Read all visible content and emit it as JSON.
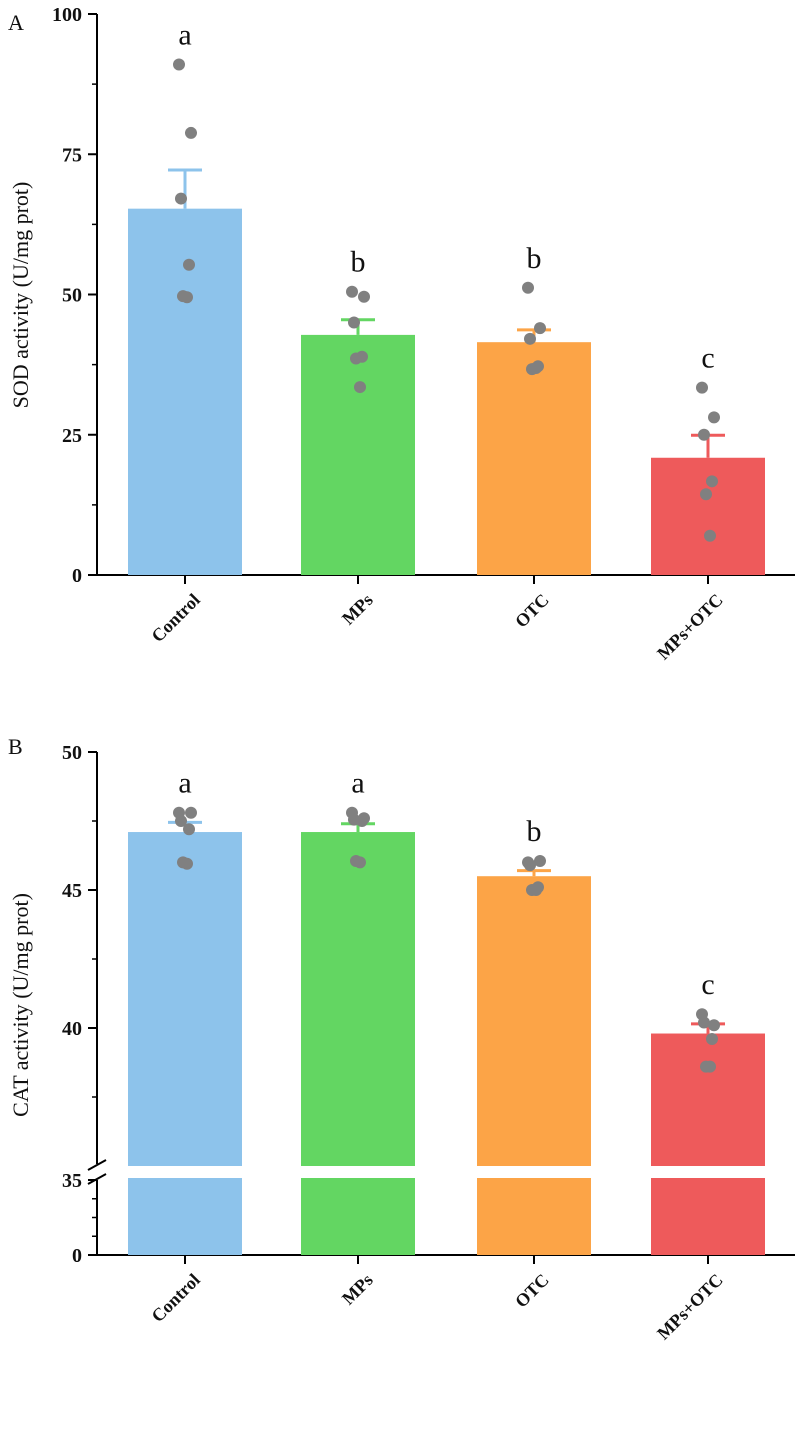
{
  "chart_data": [
    {
      "panel": "A",
      "type": "bar",
      "ylabel": "SOD activity (U/mg prot)",
      "ylim": [
        0,
        100
      ],
      "yticks": [
        "0",
        "25",
        "50",
        "75",
        "100"
      ],
      "categories": [
        "Control",
        "MPs",
        "OTC",
        "MPs+OTC"
      ],
      "colors": [
        "#8DC3EB",
        "#63D662",
        "#FCA447",
        "#EE5A5B"
      ],
      "values": [
        65.3,
        42.8,
        41.5,
        20.9
      ],
      "errors": [
        6.9,
        2.7,
        2.2,
        4.0
      ],
      "letters": [
        "a",
        "b",
        "b",
        "c"
      ],
      "points": [
        [
          91.0,
          78.8,
          67.1,
          55.3,
          49.7,
          49.5
        ],
        [
          50.5,
          49.6,
          45.0,
          38.9,
          38.6,
          33.5
        ],
        [
          51.2,
          44.0,
          42.1,
          37.2,
          36.7,
          36.9
        ],
        [
          33.4,
          28.1,
          25.0,
          16.7,
          14.4,
          7.0
        ]
      ]
    },
    {
      "panel": "B",
      "type": "bar",
      "ylabel": "CAT activity (U/mg prot)",
      "ylim_upper": [
        35,
        50
      ],
      "ylim_lower": [
        0,
        35
      ],
      "axis_break": "35",
      "yticks": [
        "0",
        "35",
        "40",
        "45",
        "50"
      ],
      "categories": [
        "Control",
        "MPs",
        "OTC",
        "MPs+OTC"
      ],
      "colors": [
        "#8DC3EB",
        "#63D662",
        "#FCA447",
        "#EE5A5B"
      ],
      "values": [
        47.1,
        47.1,
        45.5,
        39.8
      ],
      "errors": [
        0.35,
        0.3,
        0.2,
        0.35
      ],
      "letters": [
        "a",
        "a",
        "b",
        "c"
      ],
      "points": [
        [
          47.8,
          47.8,
          47.5,
          47.2,
          46.0,
          45.95
        ],
        [
          47.8,
          47.6,
          47.55,
          47.5,
          46.05,
          46.0
        ],
        [
          46.0,
          46.05,
          45.9,
          45.1,
          45.0,
          45.0
        ],
        [
          40.5,
          40.1,
          40.2,
          39.6,
          38.6,
          38.6
        ]
      ]
    }
  ]
}
